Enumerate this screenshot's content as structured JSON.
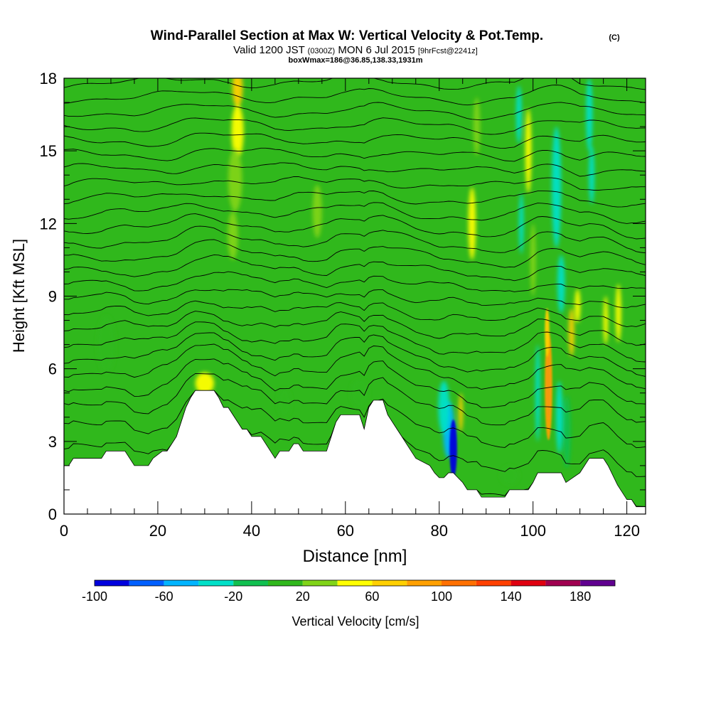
{
  "chart_data": {
    "type": "heatmap",
    "title": "Wind-Parallel Section at Max W: Vertical Velocity & Pot.Temp.",
    "title_mark": "(C)",
    "subtitle_pre": "Valid 1200 JST",
    "subtitle_utc": "(0300Z)",
    "subtitle_date": "MON 6 Jul 2015",
    "subtitle_fcst": "[9hrFcst@2241z]",
    "subtitle2": "boxWmax=186@36.85,138.33,1931m",
    "xlabel": "Distance [nm]",
    "ylabel": "Height [Kft MSL]",
    "xlim": [
      0,
      124
    ],
    "ylim": [
      0,
      18
    ],
    "x_ticks": [
      0,
      20,
      40,
      60,
      80,
      100,
      120
    ],
    "y_ticks": [
      0,
      3,
      6,
      9,
      12,
      15,
      18
    ],
    "colorbar": {
      "label": "Vertical Velocity [cm/s]",
      "min": -100,
      "max": 200,
      "tick_values": [
        -100,
        -60,
        -20,
        20,
        60,
        100,
        140,
        180
      ],
      "tick_labels": [
        "-100",
        "-60",
        "-20",
        "20",
        "60",
        "100",
        "140",
        "180"
      ],
      "colors": [
        "#0000dd",
        "#005fff",
        "#00b4ff",
        "#00e0c8",
        "#10c050",
        "#30b81c",
        "#80d418",
        "#ffff00",
        "#ffd000",
        "#ffa000",
        "#ff7000",
        "#ff4000",
        "#e00010",
        "#a00050",
        "#600090"
      ]
    },
    "terrain": [
      [
        0,
        2.0
      ],
      [
        1,
        2.0
      ],
      [
        2,
        2.3
      ],
      [
        8,
        2.3
      ],
      [
        9,
        2.6
      ],
      [
        13,
        2.6
      ],
      [
        14,
        2.3
      ],
      [
        15,
        2.0
      ],
      [
        18,
        2.0
      ],
      [
        19,
        2.3
      ],
      [
        21,
        2.6
      ],
      [
        22,
        2.6
      ],
      [
        23,
        2.9
      ],
      [
        24,
        3.2
      ],
      [
        25,
        3.8
      ],
      [
        26,
        4.4
      ],
      [
        27,
        4.8
      ],
      [
        28,
        5.1
      ],
      [
        32,
        5.1
      ],
      [
        33,
        4.8
      ],
      [
        34,
        4.4
      ],
      [
        35,
        4.4
      ],
      [
        36,
        4.1
      ],
      [
        37,
        3.8
      ],
      [
        38,
        3.5
      ],
      [
        39,
        3.5
      ],
      [
        40,
        3.2
      ],
      [
        41,
        3.2
      ],
      [
        42,
        3.2
      ],
      [
        43,
        2.9
      ],
      [
        44,
        2.6
      ],
      [
        45,
        2.3
      ],
      [
        46,
        2.6
      ],
      [
        47,
        2.6
      ],
      [
        48,
        2.6
      ],
      [
        49,
        2.9
      ],
      [
        50,
        2.9
      ],
      [
        51,
        2.6
      ],
      [
        56,
        2.6
      ],
      [
        57,
        3.2
      ],
      [
        58,
        3.8
      ],
      [
        59,
        4.1
      ],
      [
        63,
        4.1
      ],
      [
        64,
        3.5
      ],
      [
        65,
        4.4
      ],
      [
        66,
        4.7
      ],
      [
        68,
        4.7
      ],
      [
        69,
        4.1
      ],
      [
        70,
        3.8
      ],
      [
        71,
        3.5
      ],
      [
        72,
        3.2
      ],
      [
        73,
        2.9
      ],
      [
        74,
        2.6
      ],
      [
        75,
        2.3
      ],
      [
        78,
        2.0
      ],
      [
        79,
        1.7
      ],
      [
        80,
        1.5
      ],
      [
        81,
        1.5
      ],
      [
        82,
        1.7
      ],
      [
        83,
        1.7
      ],
      [
        84,
        1.5
      ],
      [
        85,
        1.3
      ],
      [
        86,
        1.0
      ],
      [
        88,
        1.0
      ],
      [
        89,
        0.7
      ],
      [
        94,
        0.7
      ],
      [
        95,
        1.0
      ],
      [
        99,
        1.0
      ],
      [
        100,
        1.3
      ],
      [
        101,
        1.7
      ],
      [
        105,
        1.7
      ],
      [
        106,
        1.7
      ],
      [
        107,
        1.3
      ],
      [
        110,
        1.7
      ],
      [
        111,
        2.0
      ],
      [
        112,
        2.3
      ],
      [
        115,
        2.3
      ],
      [
        116,
        2.0
      ],
      [
        117,
        1.6
      ],
      [
        118,
        1.2
      ],
      [
        119,
        0.9
      ],
      [
        120,
        0.6
      ],
      [
        121,
        0.6
      ],
      [
        122,
        0.3
      ],
      [
        124,
        0.3
      ]
    ],
    "features": [
      {
        "x": 37,
        "y": 17.6,
        "w": 2.2,
        "h": 1.6,
        "c": 60
      },
      {
        "x": 37,
        "y": 15.8,
        "w": 2.6,
        "h": 2.2,
        "c": 45
      },
      {
        "x": 36.5,
        "y": 13.8,
        "w": 3.0,
        "h": 2.6,
        "c": 38
      },
      {
        "x": 36,
        "y": 11.5,
        "w": 2.2,
        "h": 2.0,
        "c": 35
      },
      {
        "x": 54,
        "y": 12.5,
        "w": 2.0,
        "h": 2.2,
        "c": 32
      },
      {
        "x": 87,
        "y": 12.0,
        "w": 1.6,
        "h": 3.0,
        "c": 40
      },
      {
        "x": 88,
        "y": 16.0,
        "w": 1.4,
        "h": 2.4,
        "c": 32
      },
      {
        "x": 97,
        "y": 16.5,
        "w": 1.2,
        "h": 2.4,
        "c": -30
      },
      {
        "x": 97.5,
        "y": 12.0,
        "w": 1.0,
        "h": 2.5,
        "c": -28
      },
      {
        "x": 99,
        "y": 15.0,
        "w": 1.3,
        "h": 3.5,
        "c": 42
      },
      {
        "x": 100,
        "y": 10.5,
        "w": 1.2,
        "h": 3.0,
        "c": 38
      },
      {
        "x": 105,
        "y": 13.5,
        "w": 2.0,
        "h": 5.0,
        "c": -25
      },
      {
        "x": 106,
        "y": 9.5,
        "w": 1.6,
        "h": 2.4,
        "c": -30
      },
      {
        "x": 112,
        "y": 16.5,
        "w": 1.4,
        "h": 3.0,
        "c": -28
      },
      {
        "x": 112.5,
        "y": 14.0,
        "w": 1.2,
        "h": 2.4,
        "c": -22
      },
      {
        "x": 103.3,
        "y": 5.3,
        "w": 1.1,
        "h": 3.0,
        "c": 190
      },
      {
        "x": 103.3,
        "y": 5.3,
        "w": 1.6,
        "h": 4.5,
        "c": 80
      },
      {
        "x": 103.0,
        "y": 7.5,
        "w": 1.0,
        "h": 2.0,
        "c": 70
      },
      {
        "x": 101.0,
        "y": 5.0,
        "w": 1.0,
        "h": 4.0,
        "c": -28
      },
      {
        "x": 105.6,
        "y": 4.0,
        "w": 1.4,
        "h": 3.0,
        "c": -30
      },
      {
        "x": 107.2,
        "y": 3.4,
        "w": 1.6,
        "h": 3.0,
        "c": -20
      },
      {
        "x": 108.2,
        "y": 7.5,
        "w": 1.2,
        "h": 2.0,
        "c": 60
      },
      {
        "x": 109.5,
        "y": 8.6,
        "w": 1.2,
        "h": 1.4,
        "c": 40
      },
      {
        "x": 115.5,
        "y": 8.0,
        "w": 1.0,
        "h": 2.0,
        "c": 42
      },
      {
        "x": 118.2,
        "y": 8.3,
        "w": 1.2,
        "h": 2.4,
        "c": 48
      },
      {
        "x": 83.0,
        "y": 2.7,
        "w": 1.6,
        "h": 2.4,
        "c": -120
      },
      {
        "x": 82.0,
        "y": 3.5,
        "w": 2.4,
        "h": 2.4,
        "c": -55
      },
      {
        "x": 81.0,
        "y": 4.4,
        "w": 2.4,
        "h": 2.2,
        "c": -28
      },
      {
        "x": 84.6,
        "y": 4.2,
        "w": 0.9,
        "h": 1.6,
        "c": 60
      },
      {
        "x": 47,
        "y": 4.6,
        "w": 3.0,
        "h": 1.2,
        "c": 10
      },
      {
        "x": 63,
        "y": 5.0,
        "w": 4.0,
        "h": 1.2,
        "c": 12
      },
      {
        "x": 30,
        "y": 5.4,
        "w": 4.0,
        "h": 0.9,
        "c": 40
      },
      {
        "x": 9,
        "y": 7.0,
        "w": 4.0,
        "h": 2.4,
        "c": 10
      },
      {
        "x": 60,
        "y": 2.6,
        "w": 4.0,
        "h": 1.0,
        "c": 12
      },
      {
        "x": 95,
        "y": 1.6,
        "w": 4.0,
        "h": 0.8,
        "c": 12
      }
    ],
    "isentropes": [
      {
        "z": 1.5
      },
      {
        "z": 2.5
      },
      {
        "z": 3.5
      },
      {
        "z": 4.4
      },
      {
        "z": 5.1
      },
      {
        "z": 5.8
      },
      {
        "z": 6.4
      },
      {
        "z": 7.0
      },
      {
        "z": 7.6
      },
      {
        "z": 8.2
      },
      {
        "z": 8.8
      },
      {
        "z": 9.4
      },
      {
        "z": 10.0
      },
      {
        "z": 10.6
      },
      {
        "z": 11.2
      },
      {
        "z": 11.8
      },
      {
        "z": 12.4
      },
      {
        "z": 13.0
      },
      {
        "z": 13.6
      },
      {
        "z": 14.2
      },
      {
        "z": 14.8
      },
      {
        "z": 15.4
      },
      {
        "z": 16.0
      },
      {
        "z": 16.6
      },
      {
        "z": 17.2
      },
      {
        "z": 17.8
      }
    ]
  }
}
